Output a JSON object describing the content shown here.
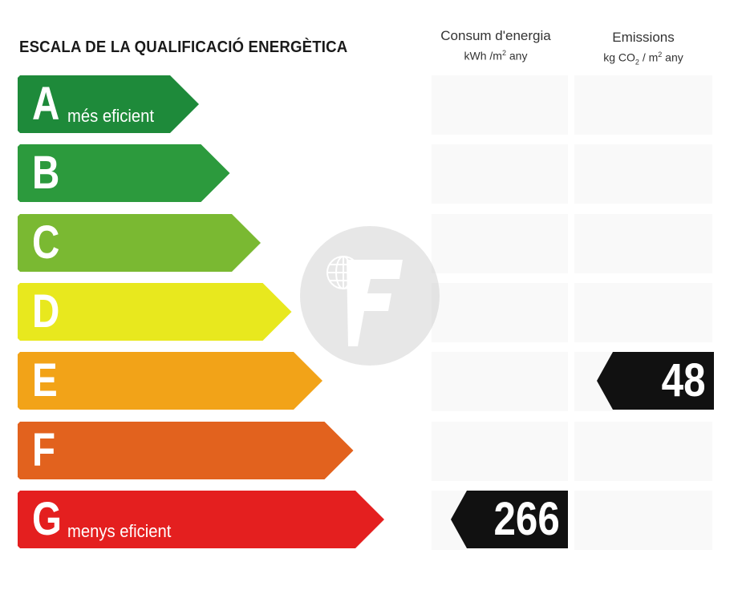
{
  "title": "ESCALA DE LA QUALIFICACIÓ ENERGÈTICA",
  "columns": {
    "consumption": {
      "label": "Consum d'energia",
      "unit_main": "kWh /m",
      "unit_sup": "2",
      "unit_tail": " any"
    },
    "emissions": {
      "label": "Emissions",
      "unit_main": "kg CO",
      "unit_sub": "2",
      "unit_mid": " / m",
      "unit_sup": "2",
      "unit_tail": " any"
    }
  },
  "ratings": [
    {
      "letter": "A",
      "caption": "més eficient",
      "color": "#1e8a3a"
    },
    {
      "letter": "B",
      "caption": "",
      "color": "#2c9a3d"
    },
    {
      "letter": "C",
      "caption": "",
      "color": "#7ab932"
    },
    {
      "letter": "D",
      "caption": "",
      "color": "#e8e81e"
    },
    {
      "letter": "E",
      "caption": "",
      "color": "#f2a318"
    },
    {
      "letter": "F",
      "caption": "",
      "color": "#e2621e"
    },
    {
      "letter": "G",
      "caption": "menys eficient",
      "color": "#e41f1f"
    }
  ],
  "consumption_value": {
    "value": "266",
    "rating": "G"
  },
  "emissions_value": {
    "value": "48",
    "rating": "E"
  },
  "tag_color": "#111111",
  "watermark_icon": "f-globe-logo-icon"
}
